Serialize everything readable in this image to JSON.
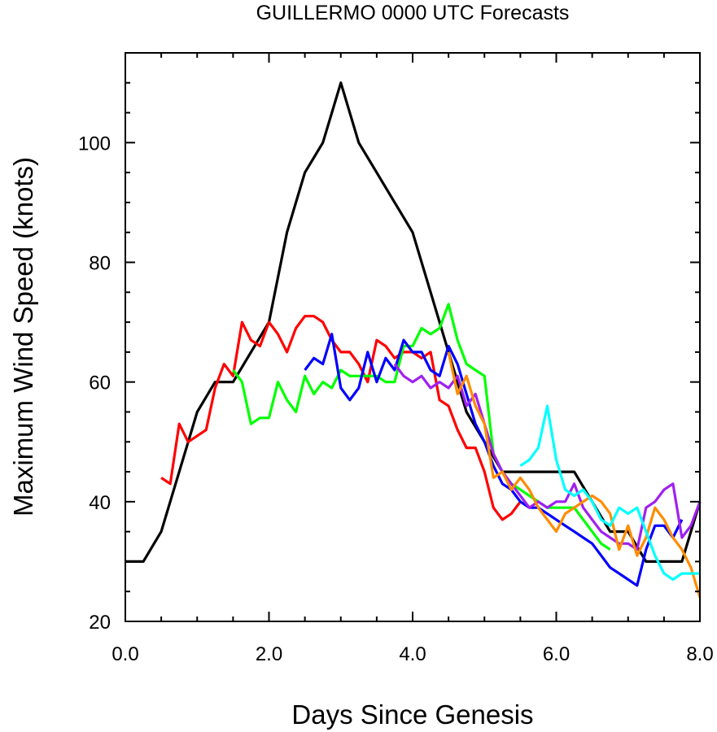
{
  "chart_data": {
    "type": "line",
    "title": "GUILLERMO 0000 UTC Forecasts",
    "xlabel": "Days Since Genesis",
    "ylabel": "Maximum Wind Speed (knots)",
    "xlim": [
      0,
      8
    ],
    "ylim": [
      20,
      115
    ],
    "xticks": [
      0,
      2,
      4,
      6,
      8
    ],
    "xtick_labels": [
      "0.0",
      "2.0",
      "4.0",
      "6.0",
      "8.0"
    ],
    "yticks": [
      20,
      40,
      60,
      80,
      100
    ],
    "ytick_labels": [
      "20",
      "40",
      "60",
      "80",
      "100"
    ],
    "grid": false,
    "series": [
      {
        "color": "#000000",
        "x": [
          0,
          0.25,
          0.5,
          0.75,
          1.0,
          1.25,
          1.5,
          1.75,
          2.0,
          2.25,
          2.5,
          2.75,
          3.0,
          3.25,
          3.5,
          3.75,
          4.0,
          4.25,
          4.5,
          4.75,
          5.0,
          5.25,
          5.5,
          5.75,
          6.0,
          6.25,
          6.5,
          6.75,
          7.0,
          7.25,
          7.5,
          7.75,
          8.0
        ],
        "y": [
          30,
          30,
          35,
          45,
          55,
          60,
          60,
          65,
          70,
          85,
          95,
          100,
          110,
          100,
          95,
          90,
          85,
          75,
          65,
          55,
          50,
          45,
          45,
          45,
          45,
          45,
          40,
          35,
          35,
          30,
          30,
          30,
          40
        ]
      },
      {
        "color": "#ff0000",
        "x": [
          0.5,
          0.625,
          0.75,
          0.875,
          1.0,
          1.125,
          1.25,
          1.375,
          1.5,
          1.625,
          1.75,
          1.875,
          2.0,
          2.125,
          2.25,
          2.375,
          2.5,
          2.625,
          2.75,
          2.875,
          3.0,
          3.125,
          3.25,
          3.375,
          3.5,
          3.625,
          3.75,
          3.875,
          4.0,
          4.125,
          4.25,
          4.375,
          4.5,
          4.625,
          4.75,
          4.875,
          5.0,
          5.125,
          5.25,
          5.375,
          5.5
        ],
        "y": [
          44,
          43,
          53,
          50,
          51,
          52,
          59,
          63,
          61,
          70,
          67,
          66,
          70,
          68,
          65,
          69,
          71,
          71,
          70,
          67,
          65,
          65,
          63,
          60,
          67,
          66,
          64,
          65,
          65,
          64,
          65,
          57,
          56,
          52,
          49,
          49,
          45,
          39,
          37,
          38,
          40
        ]
      },
      {
        "color": "#00ff00",
        "x": [
          1.5,
          1.625,
          1.75,
          1.875,
          2.0,
          2.125,
          2.25,
          2.375,
          2.5,
          2.625,
          2.75,
          2.875,
          3.0,
          3.125,
          3.25,
          3.375,
          3.5,
          3.625,
          3.75,
          3.875,
          4.0,
          4.125,
          4.25,
          4.375,
          4.5,
          4.625,
          4.75,
          4.875,
          5.0,
          5.125,
          5.25,
          5.375,
          5.5,
          5.625,
          5.75,
          5.875,
          6.0,
          6.125,
          6.25,
          6.375,
          6.5,
          6.625,
          6.75
        ],
        "y": [
          62,
          60,
          53,
          54,
          54,
          60,
          57,
          55,
          61,
          58,
          60,
          59,
          62,
          61,
          61,
          61,
          61,
          60,
          60,
          66,
          66,
          69,
          68,
          69,
          73,
          67,
          63,
          62,
          61,
          48,
          45,
          43,
          42,
          41,
          40,
          39,
          39,
          39,
          39,
          37,
          35,
          33,
          32
        ]
      },
      {
        "color": "#0000ff",
        "x": [
          2.5,
          2.625,
          2.75,
          2.875,
          3.0,
          3.125,
          3.25,
          3.375,
          3.5,
          3.625,
          3.75,
          3.875,
          4.0,
          4.125,
          4.25,
          4.375,
          4.5,
          4.625,
          4.75,
          4.875,
          5.0,
          5.125,
          5.25,
          5.375,
          5.5,
          5.625,
          5.75,
          5.875,
          6.0,
          6.125,
          6.25,
          6.375,
          6.5,
          6.625,
          6.75,
          6.875,
          7.0,
          7.125,
          7.25,
          7.375,
          7.5,
          7.625,
          7.75
        ],
        "y": [
          62,
          64,
          63,
          68,
          59,
          57,
          59,
          65,
          60,
          64,
          62,
          67,
          65,
          65,
          62,
          61,
          66,
          63,
          58,
          53,
          50,
          46,
          43,
          42,
          40,
          39,
          39,
          38,
          37,
          36,
          35,
          34,
          33,
          31,
          29,
          28,
          27,
          26,
          32,
          36,
          36,
          34,
          37
        ]
      },
      {
        "color": "#a020f0",
        "x": [
          3.75,
          3.875,
          4.0,
          4.125,
          4.25,
          4.375,
          4.5,
          4.625,
          4.75,
          4.875,
          5.0,
          5.125,
          5.25,
          5.375,
          5.5,
          5.625,
          5.75,
          5.875,
          6.0,
          6.125,
          6.25,
          6.375,
          6.5,
          6.625,
          6.75,
          6.875,
          7.0,
          7.125,
          7.25,
          7.375,
          7.5,
          7.625,
          7.75,
          7.875,
          8.0
        ],
        "y": [
          63,
          61,
          60,
          61,
          59,
          60,
          59,
          61,
          56,
          58,
          53,
          48,
          45,
          43,
          41,
          39,
          40,
          39,
          40,
          40,
          43,
          39,
          37,
          35,
          34,
          33,
          33,
          32,
          39,
          40,
          42,
          43,
          34,
          36,
          40
        ]
      },
      {
        "color": "#ff8c00",
        "x": [
          4.5,
          4.625,
          4.75,
          4.875,
          5.0,
          5.125,
          5.25,
          5.375,
          5.5,
          5.625,
          5.75,
          5.875,
          6.0,
          6.125,
          6.25,
          6.375,
          6.5,
          6.625,
          6.75,
          6.875,
          7.0,
          7.125,
          7.25,
          7.375,
          7.5,
          7.625,
          7.75,
          7.875,
          8.0
        ],
        "y": [
          65,
          58,
          61,
          56,
          53,
          44,
          45,
          42,
          44,
          42,
          39,
          37,
          35,
          38,
          39,
          40,
          41,
          40,
          38,
          32,
          36,
          31,
          34,
          39,
          37,
          34,
          32,
          29,
          24
        ]
      },
      {
        "color": "#00ffff",
        "x": [
          5.5,
          5.625,
          5.75,
          5.875,
          6.0,
          6.125,
          6.25,
          6.375,
          6.5,
          6.625,
          6.75,
          6.875,
          7.0,
          7.125,
          7.25,
          7.375,
          7.5,
          7.625,
          7.75,
          7.875,
          8.0
        ],
        "y": [
          46,
          47,
          49,
          56,
          47,
          42,
          41,
          42,
          40,
          37,
          36,
          39,
          38,
          39,
          35,
          31,
          28,
          27,
          28,
          28,
          28
        ]
      }
    ]
  }
}
